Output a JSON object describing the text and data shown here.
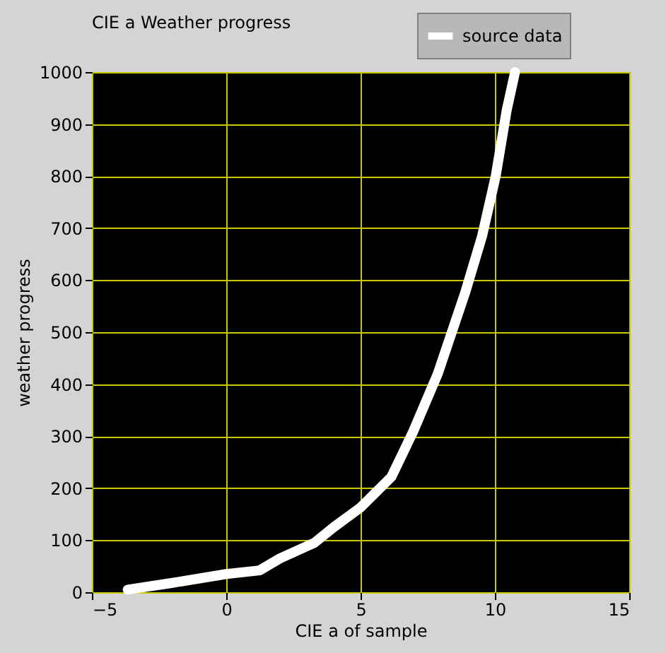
{
  "chart_data": {
    "type": "line",
    "title": "CIE a Weather progress",
    "xlabel": "CIE a of sample",
    "ylabel": "weather progress",
    "series": [
      {
        "name": "source data",
        "color": "#ffffff",
        "x": [
          -3.67,
          -2,
          0,
          1.24,
          2,
          3.28,
          4,
          5,
          6.15,
          6.96,
          7.88,
          8.9,
          9.52,
          10.03,
          10.44,
          10.75
        ],
        "values": [
          5,
          18,
          35,
          42,
          65,
          95,
          125,
          163,
          222,
          309,
          421,
          577,
          684,
          800,
          927,
          1000
        ]
      }
    ],
    "xlim": [
      -5,
      15
    ],
    "xticks": [
      -5,
      0,
      5,
      10,
      15
    ],
    "ylim": [
      0,
      1000
    ],
    "yticks": [
      0,
      100,
      200,
      300,
      400,
      500,
      600,
      700,
      800,
      900,
      1000
    ],
    "grid": true,
    "legend": "top right",
    "line_style": "solid"
  }
}
